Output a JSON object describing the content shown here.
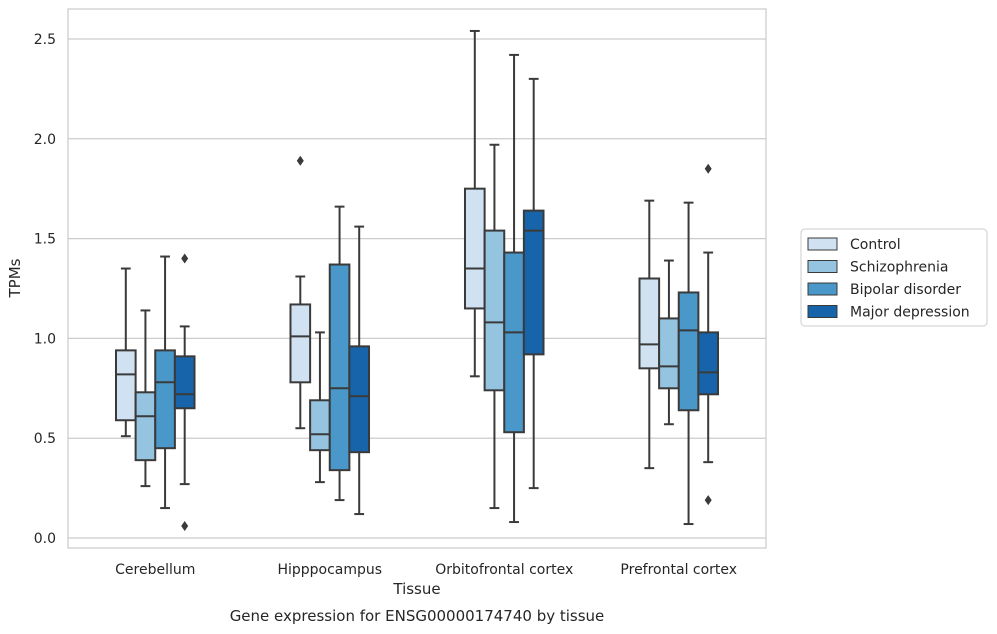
{
  "chart_data": {
    "type": "box",
    "xlabel": "Tissue",
    "ylabel": "TPMs",
    "caption": "Gene expression for ENSG00000174740 by tissue",
    "categories": [
      "Cerebellum",
      "Hipppocampus",
      "Orbitofrontal cortex",
      "Prefrontal cortex"
    ],
    "ylim": [
      -0.05,
      2.65
    ],
    "yticks": [
      0.0,
      0.5,
      1.0,
      1.5,
      2.0,
      2.5
    ],
    "ytick_labels": [
      "0.0",
      "0.5",
      "1.0",
      "1.5",
      "2.0",
      "2.5"
    ],
    "grid": "horizontal",
    "legend_position": "right",
    "series": [
      {
        "name": "Control",
        "color": "#d0e1f2",
        "boxes": [
          {
            "whislo": 0.51,
            "q1": 0.59,
            "med": 0.82,
            "q3": 0.94,
            "whishi": 1.35,
            "fliers": []
          },
          {
            "whislo": 0.55,
            "q1": 0.78,
            "med": 1.01,
            "q3": 1.17,
            "whishi": 1.31,
            "fliers": [
              1.89
            ]
          },
          {
            "whislo": 0.81,
            "q1": 1.15,
            "med": 1.35,
            "q3": 1.75,
            "whishi": 2.54,
            "fliers": []
          },
          {
            "whislo": 0.35,
            "q1": 0.85,
            "med": 0.97,
            "q3": 1.3,
            "whishi": 1.69,
            "fliers": []
          }
        ]
      },
      {
        "name": "Schizophrenia",
        "color": "#94c4df",
        "boxes": [
          {
            "whislo": 0.26,
            "q1": 0.39,
            "med": 0.61,
            "q3": 0.73,
            "whishi": 1.14,
            "fliers": []
          },
          {
            "whislo": 0.28,
            "q1": 0.44,
            "med": 0.52,
            "q3": 0.69,
            "whishi": 1.03,
            "fliers": []
          },
          {
            "whislo": 0.15,
            "q1": 0.74,
            "med": 1.08,
            "q3": 1.54,
            "whishi": 1.97,
            "fliers": []
          },
          {
            "whislo": 0.57,
            "q1": 0.75,
            "med": 0.86,
            "q3": 1.1,
            "whishi": 1.39,
            "fliers": []
          }
        ]
      },
      {
        "name": "Bipolar disorder",
        "color": "#4a98c9",
        "boxes": [
          {
            "whislo": 0.15,
            "q1": 0.45,
            "med": 0.78,
            "q3": 0.94,
            "whishi": 1.41,
            "fliers": []
          },
          {
            "whislo": 0.19,
            "q1": 0.34,
            "med": 0.75,
            "q3": 1.37,
            "whishi": 1.66,
            "fliers": []
          },
          {
            "whislo": 0.08,
            "q1": 0.53,
            "med": 1.03,
            "q3": 1.43,
            "whishi": 2.42,
            "fliers": []
          },
          {
            "whislo": 0.07,
            "q1": 0.64,
            "med": 1.04,
            "q3": 1.23,
            "whishi": 1.68,
            "fliers": []
          }
        ]
      },
      {
        "name": "Major depression",
        "color": "#1764ab",
        "boxes": [
          {
            "whislo": 0.27,
            "q1": 0.65,
            "med": 0.72,
            "q3": 0.91,
            "whishi": 1.06,
            "fliers": [
              1.4,
              0.06
            ]
          },
          {
            "whislo": 0.12,
            "q1": 0.43,
            "med": 0.71,
            "q3": 0.96,
            "whishi": 1.56,
            "fliers": []
          },
          {
            "whislo": 0.25,
            "q1": 0.92,
            "med": 1.54,
            "q3": 1.64,
            "whishi": 2.3,
            "fliers": []
          },
          {
            "whislo": 0.38,
            "q1": 0.72,
            "med": 0.83,
            "q3": 1.03,
            "whishi": 1.43,
            "fliers": [
              1.85,
              0.19
            ]
          }
        ]
      }
    ]
  }
}
